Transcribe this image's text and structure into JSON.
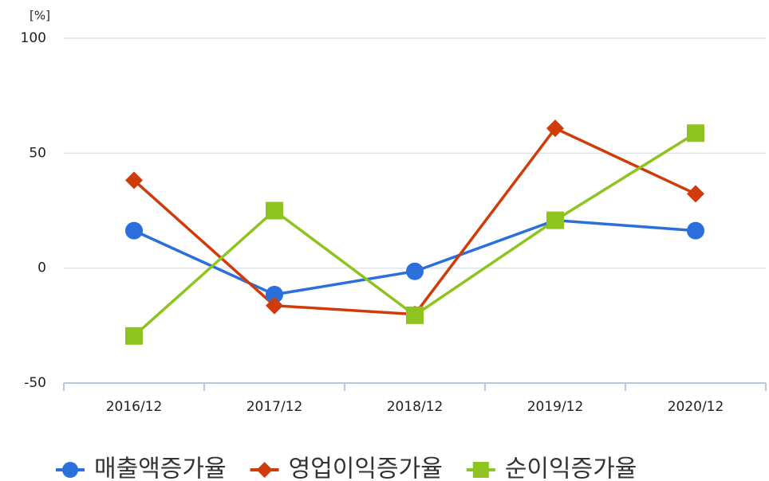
{
  "chart_data": {
    "type": "line",
    "y_label": "[%]",
    "categories": [
      "2016/12",
      "2017/12",
      "2018/12",
      "2019/12",
      "2020/12"
    ],
    "series": [
      {
        "name": "매출액증가율",
        "color": "#2a6fdb",
        "marker": "circle",
        "values": [
          16.3,
          -11.5,
          -1.4,
          20.8,
          16.3
        ]
      },
      {
        "name": "영업이익증가율",
        "color": "#d03b0a",
        "marker": "diamond",
        "values": [
          38.2,
          -16.3,
          -20.1,
          60.8,
          32.3
        ]
      },
      {
        "name": "순이익증가율",
        "color": "#8fc31f",
        "marker": "square",
        "values": [
          -29.5,
          25,
          -20.5,
          20.8,
          58.7
        ]
      }
    ],
    "ylim": [
      -50,
      100
    ],
    "yticks": [
      -50,
      0,
      50,
      100
    ],
    "grid": true,
    "legend": "bottom"
  }
}
